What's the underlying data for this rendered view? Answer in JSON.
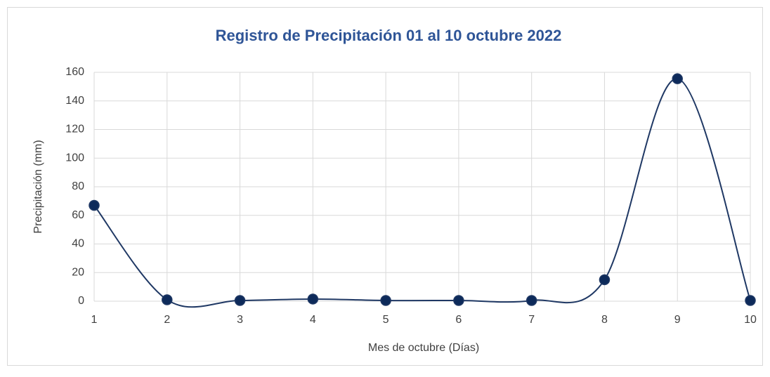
{
  "chart_data": {
    "type": "line",
    "title": "Registro de Precipitación 01 al 10 octubre 2022",
    "x_label": "Mes de octubre (Días)",
    "y_label": "Precipitación (mm)",
    "x": [
      1,
      2,
      3,
      4,
      5,
      6,
      7,
      8,
      9,
      10
    ],
    "series": [
      {
        "name": "Precipitación",
        "color": "#1f3864",
        "marker_color": "#0d2a5a",
        "values": [
          67,
          1,
          0.5,
          1.5,
          0.5,
          0.5,
          0.5,
          15,
          155.5,
          0.5
        ]
      }
    ],
    "xlim": [
      1,
      10
    ],
    "xticks": [
      1,
      2,
      3,
      4,
      5,
      6,
      7,
      8,
      9,
      10
    ],
    "ylim": [
      0,
      160
    ],
    "yticks": [
      0,
      20,
      40,
      60,
      80,
      100,
      120,
      140,
      160
    ],
    "grid": true,
    "smooth": true,
    "title_color": "#2f5597"
  }
}
